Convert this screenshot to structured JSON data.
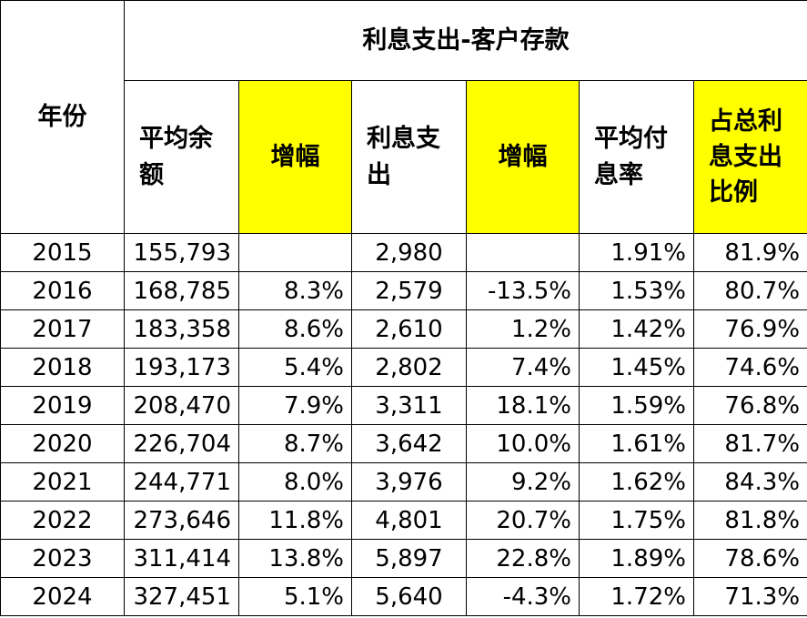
{
  "table": {
    "year_header": "年份",
    "group_header": "利息支出-客户存款",
    "columns": [
      {
        "label": "平均余额",
        "highlight": false
      },
      {
        "label": "增幅",
        "highlight": true
      },
      {
        "label": "利息支出",
        "highlight": false
      },
      {
        "label": "增幅",
        "highlight": true
      },
      {
        "label": "平均付息率",
        "highlight": false
      },
      {
        "label": "占总利息支出比例",
        "highlight": true
      }
    ],
    "highlight_color": "#ffff00",
    "rows": [
      {
        "year": "2015",
        "avg_balance": "155,793",
        "balance_growth": "",
        "interest_expense": "2,980",
        "expense_growth": "",
        "avg_rate": "1.91%",
        "share": "81.9%"
      },
      {
        "year": "2016",
        "avg_balance": "168,785",
        "balance_growth": "8.3%",
        "interest_expense": "2,579",
        "expense_growth": "-13.5%",
        "avg_rate": "1.53%",
        "share": "80.7%"
      },
      {
        "year": "2017",
        "avg_balance": "183,358",
        "balance_growth": "8.6%",
        "interest_expense": "2,610",
        "expense_growth": "1.2%",
        "avg_rate": "1.42%",
        "share": "76.9%"
      },
      {
        "year": "2018",
        "avg_balance": "193,173",
        "balance_growth": "5.4%",
        "interest_expense": "2,802",
        "expense_growth": "7.4%",
        "avg_rate": "1.45%",
        "share": "74.6%"
      },
      {
        "year": "2019",
        "avg_balance": "208,470",
        "balance_growth": "7.9%",
        "interest_expense": "3,311",
        "expense_growth": "18.1%",
        "avg_rate": "1.59%",
        "share": "76.8%"
      },
      {
        "year": "2020",
        "avg_balance": "226,704",
        "balance_growth": "8.7%",
        "interest_expense": "3,642",
        "expense_growth": "10.0%",
        "avg_rate": "1.61%",
        "share": "81.7%"
      },
      {
        "year": "2021",
        "avg_balance": "244,771",
        "balance_growth": "8.0%",
        "interest_expense": "3,976",
        "expense_growth": "9.2%",
        "avg_rate": "1.62%",
        "share": "84.3%"
      },
      {
        "year": "2022",
        "avg_balance": "273,646",
        "balance_growth": "11.8%",
        "interest_expense": "4,801",
        "expense_growth": "20.7%",
        "avg_rate": "1.75%",
        "share": "81.8%"
      },
      {
        "year": "2023",
        "avg_balance": "311,414",
        "balance_growth": "13.8%",
        "interest_expense": "5,897",
        "expense_growth": "22.8%",
        "avg_rate": "1.89%",
        "share": "78.6%"
      },
      {
        "year": "2024",
        "avg_balance": "327,451",
        "balance_growth": "5.1%",
        "interest_expense": "5,640",
        "expense_growth": "-4.3%",
        "avg_rate": "1.72%",
        "share": "71.3%"
      }
    ]
  }
}
